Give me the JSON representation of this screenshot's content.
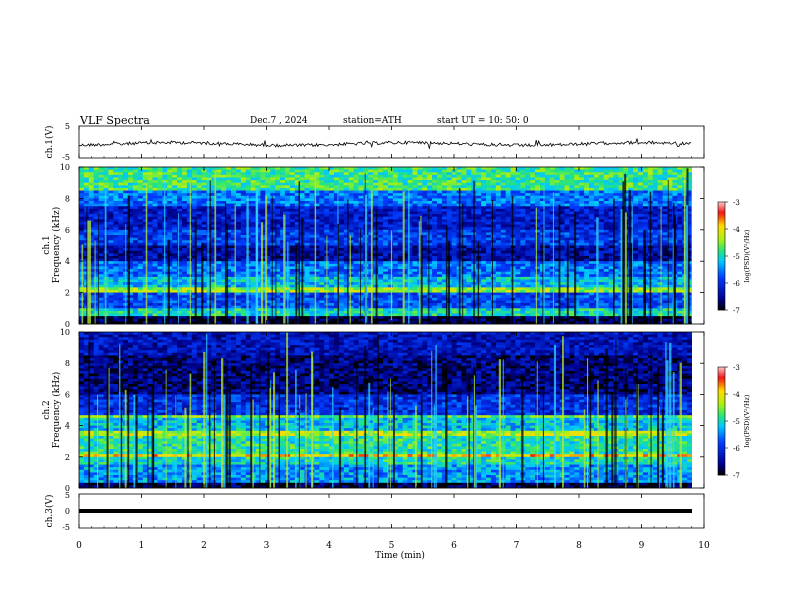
{
  "header": {
    "title": "VLF Spectra",
    "date": "Dec.7 , 2024",
    "station": "station=ATH",
    "start": "start UT = 10: 50: 0"
  },
  "chart_data": [
    {
      "type": "line",
      "name": "ch.1 waveform",
      "ylabel": "ch.1(V)",
      "ylim": [
        -5,
        5
      ],
      "yticks": [
        "5",
        "-5"
      ],
      "x_range": [
        0,
        9.8
      ],
      "baseline": 0,
      "color": "#000000"
    },
    {
      "type": "heatmap",
      "name": "ch.1 spectrogram",
      "ylabel": "Frequency (kHz)",
      "ylabel2": "ch.1",
      "ylim": [
        0,
        10
      ],
      "yticks": [
        "0",
        "2",
        "4",
        "6",
        "8",
        "10"
      ],
      "x_range": [
        0,
        9.8
      ],
      "colorbar": {
        "label": "log(PSD)(V²/Hz)",
        "range": [
          -7,
          -3
        ],
        "ticks": [
          "-3",
          "-4",
          "-5",
          "-6",
          "-7"
        ]
      },
      "bands": [
        {
          "f": [
            0.0,
            0.5
          ],
          "level": -6.8
        },
        {
          "f": [
            0.5,
            1.0
          ],
          "level": -5.0
        },
        {
          "f": [
            1.0,
            2.0
          ],
          "level": -5.8
        },
        {
          "f": [
            2.0,
            2.3
          ],
          "level": -4.4
        },
        {
          "f": [
            2.3,
            3.0
          ],
          "level": -5.2
        },
        {
          "f": [
            3.0,
            4.0
          ],
          "level": -5.6
        },
        {
          "f": [
            4.0,
            5.0
          ],
          "level": -6.4
        },
        {
          "f": [
            5.0,
            6.0
          ],
          "level": -5.9
        },
        {
          "f": [
            6.0,
            7.5
          ],
          "level": -6.2
        },
        {
          "f": [
            7.5,
            8.5
          ],
          "level": -5.6
        },
        {
          "f": [
            8.5,
            10.0
          ],
          "level": -4.8
        }
      ]
    },
    {
      "type": "heatmap",
      "name": "ch.2 spectrogram",
      "ylabel": "Frequency (kHz)",
      "ylabel2": "ch.2",
      "ylim": [
        0,
        10
      ],
      "yticks": [
        "0",
        "2",
        "4",
        "6",
        "8",
        "10"
      ],
      "x_range": [
        0,
        9.8
      ],
      "colorbar": {
        "label": "log(PSD)(V²/Hz)",
        "range": [
          -7,
          -3
        ],
        "ticks": [
          "-3",
          "-4",
          "-5",
          "-6",
          "-7"
        ]
      },
      "bands": [
        {
          "f": [
            0.0,
            0.4
          ],
          "level": -6.8
        },
        {
          "f": [
            0.4,
            1.5
          ],
          "level": -5.4
        },
        {
          "f": [
            1.5,
            2.0
          ],
          "level": -5.0
        },
        {
          "f": [
            2.0,
            2.2
          ],
          "level": -3.9
        },
        {
          "f": [
            2.2,
            3.3
          ],
          "level": -4.9
        },
        {
          "f": [
            3.3,
            3.6
          ],
          "level": -4.3
        },
        {
          "f": [
            3.6,
            4.5
          ],
          "level": -5.2
        },
        {
          "f": [
            4.5,
            4.7
          ],
          "level": -4.6
        },
        {
          "f": [
            4.7,
            6.0
          ],
          "level": -6.0
        },
        {
          "f": [
            6.0,
            8.5
          ],
          "level": -6.6
        },
        {
          "f": [
            8.5,
            10.0
          ],
          "level": -6.3
        }
      ]
    },
    {
      "type": "line",
      "name": "ch.3 waveform",
      "ylabel": "ch.3(V)",
      "ylim": [
        -5,
        5
      ],
      "yticks": [
        "5",
        "0",
        "-5"
      ],
      "x_range": [
        0,
        9.8
      ],
      "baseline": -1.2,
      "color": "#000000"
    }
  ],
  "xaxis": {
    "label": "Time (min)",
    "ticks": [
      "0",
      "1",
      "2",
      "3",
      "4",
      "5",
      "6",
      "7",
      "8",
      "9",
      "10"
    ],
    "range": [
      0,
      10
    ]
  }
}
